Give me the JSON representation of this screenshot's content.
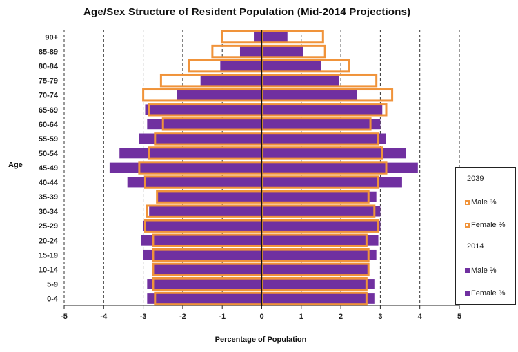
{
  "chart_data": {
    "type": "bar",
    "orientation": "horizontal",
    "title": "Age/Sex Structure of Resident Population (Mid-2014 Projections)",
    "xlabel": "Percentage of Population",
    "ylabel": "Age",
    "xlim": [
      -5,
      5
    ],
    "xticks": [
      "-5",
      "-4",
      "-3",
      "-2",
      "-1",
      "0",
      "1",
      "2",
      "3",
      "4",
      "5"
    ],
    "grid": "vertical dashed",
    "categories": [
      "90+",
      "85-89",
      "80-84",
      "75-79",
      "70-74",
      "65-69",
      "60-64",
      "55-59",
      "50-54",
      "45-49",
      "40-44",
      "35-39",
      "30-34",
      "25-29",
      "20-24",
      "15-19",
      "10-14",
      "5-9",
      "0-4"
    ],
    "series": [
      {
        "name": "Male %",
        "group": "2039",
        "style": "outline",
        "color": "#f0933a",
        "values": [
          -1.0,
          -1.25,
          -1.85,
          -2.55,
          -3.0,
          -2.85,
          -2.5,
          -2.7,
          -2.85,
          -3.1,
          -2.95,
          -2.65,
          -2.9,
          -2.95,
          -2.75,
          -2.75,
          -2.75,
          -2.75,
          -2.7
        ]
      },
      {
        "name": "Female %",
        "group": "2039",
        "style": "outline",
        "color": "#f0933a",
        "values": [
          1.55,
          1.6,
          2.2,
          2.9,
          3.3,
          3.15,
          2.75,
          2.95,
          3.05,
          3.15,
          2.95,
          2.7,
          2.85,
          2.95,
          2.65,
          2.7,
          2.7,
          2.65,
          2.65
        ]
      },
      {
        "name": "Male %",
        "group": "2014",
        "style": "filled",
        "color": "#7030a0",
        "values": [
          -0.2,
          -0.55,
          -1.05,
          -1.55,
          -2.15,
          -2.95,
          -2.9,
          -3.1,
          -3.6,
          -3.85,
          -3.4,
          -2.65,
          -2.85,
          -3.0,
          -3.05,
          -3.0,
          -2.75,
          -2.9,
          -2.9
        ]
      },
      {
        "name": "Female %",
        "group": "2014",
        "style": "filled",
        "color": "#7030a0",
        "values": [
          0.65,
          1.05,
          1.5,
          1.95,
          2.4,
          3.05,
          3.0,
          3.15,
          3.65,
          3.95,
          3.55,
          2.9,
          3.0,
          3.0,
          2.95,
          2.9,
          2.7,
          2.85,
          2.85
        ]
      }
    ],
    "legend": {
      "placement": "right",
      "groups": [
        {
          "label": "2039",
          "items": [
            {
              "label": "Male %",
              "style": "outline"
            },
            {
              "label": "Female %",
              "style": "outline"
            }
          ]
        },
        {
          "label": "2014",
          "items": [
            {
              "label": "Male %",
              "style": "filled"
            },
            {
              "label": "Female %",
              "style": "filled"
            }
          ]
        }
      ]
    }
  },
  "colors": {
    "outline": "#f0933a",
    "filled": "#7030a0",
    "grid": "#333333"
  }
}
